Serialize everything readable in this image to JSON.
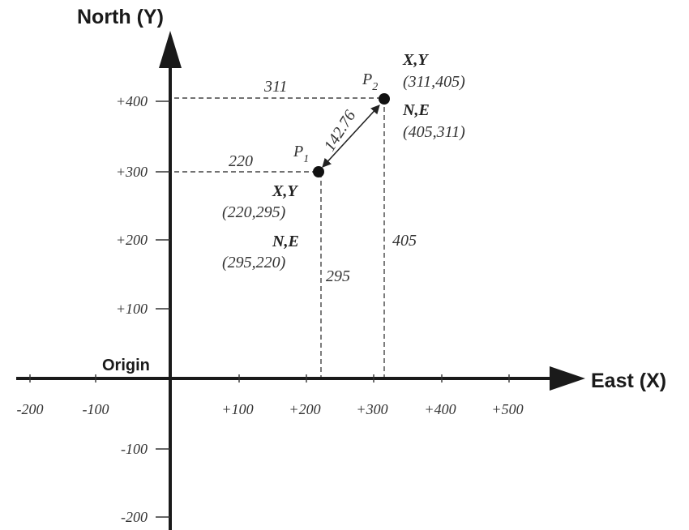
{
  "axes": {
    "y_title": "North (Y)",
    "x_title": "East (X)",
    "origin_label": "Origin"
  },
  "x_ticks": [
    "-200",
    "-100",
    "+100",
    "+200",
    "+300",
    "+400",
    "+500"
  ],
  "y_ticks": [
    "+400",
    "+300",
    "+200",
    "+100",
    "-100",
    "-200"
  ],
  "points": {
    "p1": {
      "name": "P",
      "subscript": "1",
      "xy_header": "X,Y",
      "xy_value": "(220,295)",
      "ne_header": "N,E",
      "ne_value": "(295,220)",
      "x_label": "220",
      "y_label": "295"
    },
    "p2": {
      "name": "P",
      "subscript": "2",
      "xy_header": "X,Y",
      "xy_value": "(311,405)",
      "ne_header": "N,E",
      "ne_value": "(405,311)",
      "x_label": "311",
      "y_label": "405"
    }
  },
  "distance_label": "142.76",
  "colors": {
    "axis": "#1a1a1a",
    "text": "#333333",
    "background": "#ffffff"
  }
}
